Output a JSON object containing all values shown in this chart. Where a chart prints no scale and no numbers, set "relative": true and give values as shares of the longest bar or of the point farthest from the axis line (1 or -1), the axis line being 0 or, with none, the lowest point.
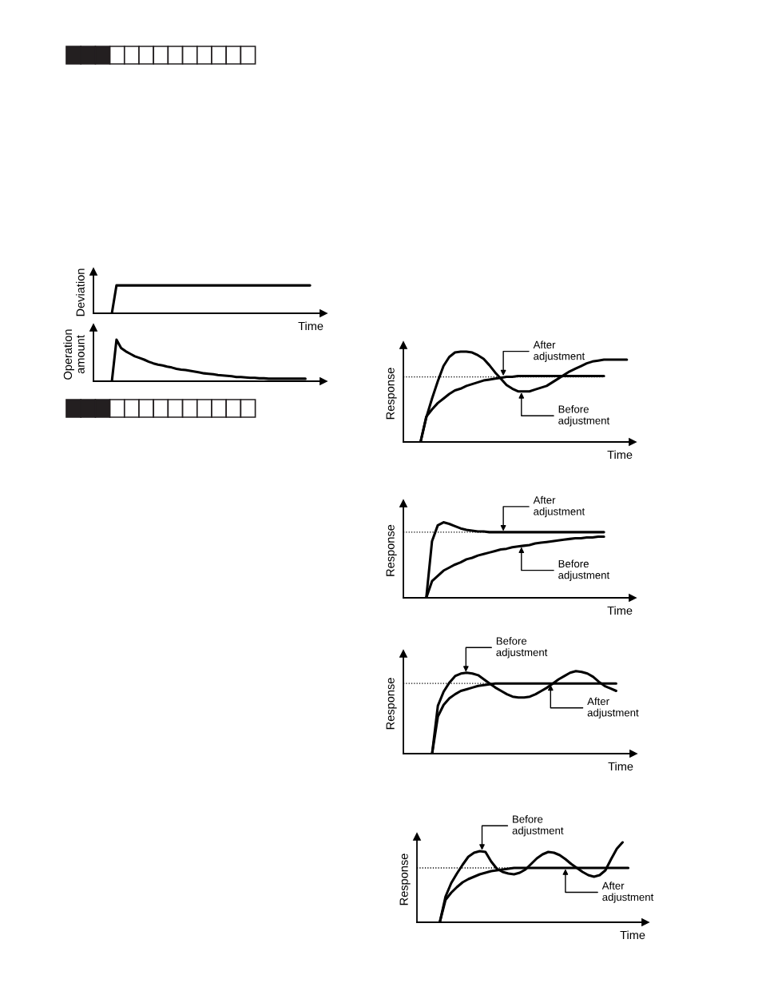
{
  "chart_data": [
    {
      "type": "line",
      "relative": true,
      "ylabel": "Deviation",
      "xlabel": "Time",
      "categories": [
        null,
        null,
        null,
        null,
        null,
        null,
        null,
        null,
        null,
        null,
        null,
        null,
        null,
        null,
        null,
        null,
        null,
        null,
        null,
        null,
        null,
        null,
        null,
        null,
        null,
        null,
        null,
        null,
        null,
        null,
        null,
        null,
        null,
        null,
        null,
        null,
        null,
        null,
        null,
        null,
        null,
        null,
        null,
        null,
        null,
        null,
        null,
        null
      ],
      "series": [
        {
          "color": "#000000",
          "values": [
            null,
            null,
            null,
            null,
            0,
            1,
            1,
            1,
            1,
            1,
            1,
            1,
            1,
            1,
            1,
            1,
            1,
            1,
            1,
            1,
            1,
            1,
            1,
            1,
            1,
            1,
            1,
            1,
            1,
            1,
            1,
            1,
            1,
            1,
            1,
            1,
            1,
            1,
            1,
            1,
            1,
            1,
            1,
            1,
            1,
            1,
            1,
            1
          ]
        }
      ]
    },
    {
      "type": "line",
      "relative": true,
      "ylabel": "Operation\namount",
      "categories": [
        null,
        null,
        null,
        null,
        null,
        null,
        null,
        null,
        null,
        null,
        null,
        null,
        null,
        null,
        null,
        null,
        null,
        null,
        null,
        null,
        null,
        null,
        null,
        null,
        null,
        null,
        null,
        null,
        null,
        null,
        null,
        null,
        null,
        null,
        null,
        null,
        null,
        null,
        null,
        null,
        null,
        null,
        null,
        null,
        null,
        null,
        null,
        null
      ],
      "series": [
        {
          "color": "#000000",
          "values": [
            null,
            null,
            null,
            null,
            0,
            1,
            0.8,
            0.72,
            0.66,
            0.6,
            0.56,
            0.52,
            0.47,
            0.43,
            0.4,
            0.38,
            0.35,
            0.33,
            0.3,
            0.28,
            0.27,
            0.25,
            0.23,
            0.21,
            0.19,
            0.18,
            0.17,
            0.15,
            0.14,
            0.13,
            0.12,
            0.1,
            0.1,
            0.09,
            0.08,
            0.08,
            0.07,
            0.07,
            0.06,
            0.06,
            0.06,
            0.06,
            0.06,
            0.06,
            0.06,
            0.06,
            0.06,
            null
          ]
        }
      ]
    },
    {
      "type": "line",
      "relative": true,
      "ylabel": "Response",
      "xlabel": "Time",
      "categories": [
        null,
        null,
        null,
        null,
        null,
        null,
        null,
        null,
        null,
        null,
        null,
        null,
        null,
        null,
        null,
        null,
        null,
        null,
        null,
        null,
        null,
        null,
        null,
        null,
        null,
        null,
        null,
        null,
        null,
        null,
        null,
        null,
        null,
        null,
        null,
        null,
        null,
        null,
        null,
        null
      ],
      "series": [
        {
          "color": "#000000",
          "values": [
            null,
            null,
            null,
            0,
            0.27,
            0.48,
            0.67,
            0.84,
            0.94,
            0.99,
            1.0,
            1.0,
            0.99,
            0.96,
            0.92,
            0.85,
            0.77,
            0.7,
            0.63,
            0.59,
            0.56,
            0.56,
            0.56,
            0.58,
            0.6,
            0.62,
            0.66,
            0.7,
            0.74,
            0.78,
            0.81,
            0.84,
            0.87,
            0.89,
            0.9,
            0.91,
            0.91,
            0.91,
            0.91,
            0.91
          ]
        },
        {
          "color": "#000000",
          "values": [
            null,
            null,
            null,
            0,
            0.28,
            0.36,
            0.43,
            0.48,
            0.53,
            0.57,
            0.59,
            0.62,
            0.64,
            0.66,
            0.68,
            0.69,
            0.7,
            0.71,
            0.72,
            0.72,
            0.73,
            0.73,
            0.73,
            0.73,
            0.73,
            0.73,
            0.73,
            0.73,
            0.73,
            0.73,
            0.73,
            0.73,
            0.73,
            0.73,
            0.73,
            0.73,
            null,
            null,
            null,
            null
          ]
        }
      ],
      "ref_lines": [
        {
          "axis": "y",
          "value": 0.72,
          "line_style": "dotted",
          "color": "#000000"
        }
      ],
      "annotations": [
        "After\nadjustment",
        "Before\nadjustment"
      ]
    },
    {
      "type": "line",
      "relative": true,
      "ylabel": "Response",
      "xlabel": "Time",
      "categories": [
        null,
        null,
        null,
        null,
        null,
        null,
        null,
        null,
        null,
        null,
        null,
        null,
        null,
        null,
        null,
        null,
        null,
        null,
        null,
        null,
        null,
        null,
        null,
        null,
        null,
        null,
        null,
        null,
        null,
        null,
        null,
        null,
        null,
        null,
        null,
        null,
        null,
        null,
        null,
        null
      ],
      "series": [
        {
          "color": "#000000",
          "values": [
            null,
            null,
            null,
            null,
            0,
            0.75,
            0.96,
            1.0,
            0.98,
            0.95,
            0.92,
            0.9,
            0.89,
            0.88,
            0.88,
            0.87,
            0.87,
            0.87,
            0.87,
            0.87,
            0.87,
            0.87,
            0.87,
            0.87,
            0.87,
            0.87,
            0.87,
            0.87,
            0.87,
            0.87,
            0.87,
            0.87,
            0.87,
            0.87,
            0.87,
            0.87,
            null,
            null,
            null,
            null
          ]
        },
        {
          "color": "#000000",
          "values": [
            null,
            null,
            null,
            null,
            0,
            0.22,
            0.29,
            0.36,
            0.4,
            0.44,
            0.47,
            0.51,
            0.53,
            0.56,
            0.58,
            0.6,
            0.62,
            0.64,
            0.65,
            0.67,
            0.68,
            0.69,
            0.7,
            0.72,
            0.73,
            0.74,
            0.75,
            0.76,
            0.77,
            0.78,
            0.79,
            0.79,
            0.8,
            0.8,
            0.81,
            0.81,
            null,
            null,
            null,
            null
          ]
        }
      ],
      "ref_lines": [
        {
          "axis": "y",
          "value": 0.87,
          "line_style": "dotted",
          "color": "#000000"
        }
      ],
      "annotations": [
        "After\nadjustment",
        "Before\nadjustment"
      ]
    },
    {
      "type": "line",
      "relative": true,
      "ylabel": "Response",
      "xlabel": "Time",
      "categories": [
        null,
        null,
        null,
        null,
        null,
        null,
        null,
        null,
        null,
        null,
        null,
        null,
        null,
        null,
        null,
        null,
        null,
        null,
        null,
        null,
        null,
        null,
        null,
        null,
        null,
        null,
        null,
        null,
        null,
        null,
        null,
        null,
        null,
        null,
        null,
        null,
        null,
        null,
        null,
        null
      ],
      "series": [
        {
          "color": "#000000",
          "values": [
            null,
            null,
            null,
            null,
            null,
            0,
            0.58,
            0.75,
            0.86,
            0.94,
            0.97,
            0.98,
            0.97,
            0.95,
            0.9,
            0.85,
            0.8,
            0.76,
            0.72,
            0.69,
            0.68,
            0.68,
            0.69,
            0.72,
            0.76,
            0.8,
            0.85,
            0.9,
            0.94,
            0.98,
            1.0,
            0.99,
            0.97,
            0.93,
            0.87,
            0.82,
            0.79,
            0.76,
            null,
            null
          ]
        },
        {
          "color": "#000000",
          "values": [
            null,
            null,
            null,
            null,
            null,
            0,
            0.45,
            0.59,
            0.67,
            0.72,
            0.76,
            0.78,
            0.8,
            0.82,
            0.83,
            0.84,
            0.85,
            0.85,
            0.85,
            0.85,
            0.85,
            0.85,
            0.85,
            0.85,
            0.85,
            0.85,
            0.85,
            0.85,
            0.85,
            0.85,
            0.85,
            0.85,
            0.85,
            0.85,
            0.85,
            0.85,
            0.85,
            0.85,
            null,
            null
          ]
        }
      ],
      "ref_lines": [
        {
          "axis": "y",
          "value": 0.85,
          "line_style": "dotted",
          "color": "#000000"
        }
      ],
      "annotations": [
        "Before\nadjustment",
        "After\nadjustment"
      ]
    },
    {
      "type": "line",
      "relative": true,
      "ylabel": "Response",
      "xlabel": "Time",
      "categories": [
        null,
        null,
        null,
        null,
        null,
        null,
        null,
        null,
        null,
        null,
        null,
        null,
        null,
        null,
        null,
        null,
        null,
        null,
        null,
        null,
        null,
        null,
        null,
        null,
        null,
        null,
        null,
        null,
        null,
        null,
        null,
        null,
        null,
        null,
        null,
        null,
        null,
        null,
        null,
        null
      ],
      "series": [
        {
          "color": "#000000",
          "values": [
            null,
            null,
            null,
            null,
            0,
            0.32,
            0.49,
            0.61,
            0.72,
            0.82,
            0.87,
            0.89,
            0.88,
            0.76,
            0.67,
            0.63,
            0.61,
            0.6,
            0.62,
            0.66,
            0.73,
            0.8,
            0.85,
            0.88,
            0.87,
            0.84,
            0.79,
            0.73,
            0.68,
            0.63,
            0.59,
            0.57,
            0.59,
            0.65,
            0.79,
            0.92,
            1.0,
            null,
            null,
            null
          ]
        },
        {
          "color": "#000000",
          "values": [
            null,
            null,
            null,
            null,
            0,
            0.28,
            0.37,
            0.44,
            0.5,
            0.54,
            0.57,
            0.6,
            0.62,
            0.64,
            0.65,
            0.66,
            0.67,
            0.68,
            0.68,
            0.68,
            0.68,
            0.68,
            0.68,
            0.68,
            0.68,
            0.68,
            0.68,
            0.68,
            0.68,
            0.68,
            0.68,
            0.68,
            0.68,
            0.68,
            0.68,
            0.68,
            0.68,
            0.68,
            null,
            null
          ]
        }
      ],
      "ref_lines": [
        {
          "axis": "y",
          "value": 0.68,
          "line_style": "dotted",
          "color": "#000000"
        }
      ],
      "annotations": [
        "Before\nadjustment",
        "After\nadjustment"
      ]
    }
  ]
}
